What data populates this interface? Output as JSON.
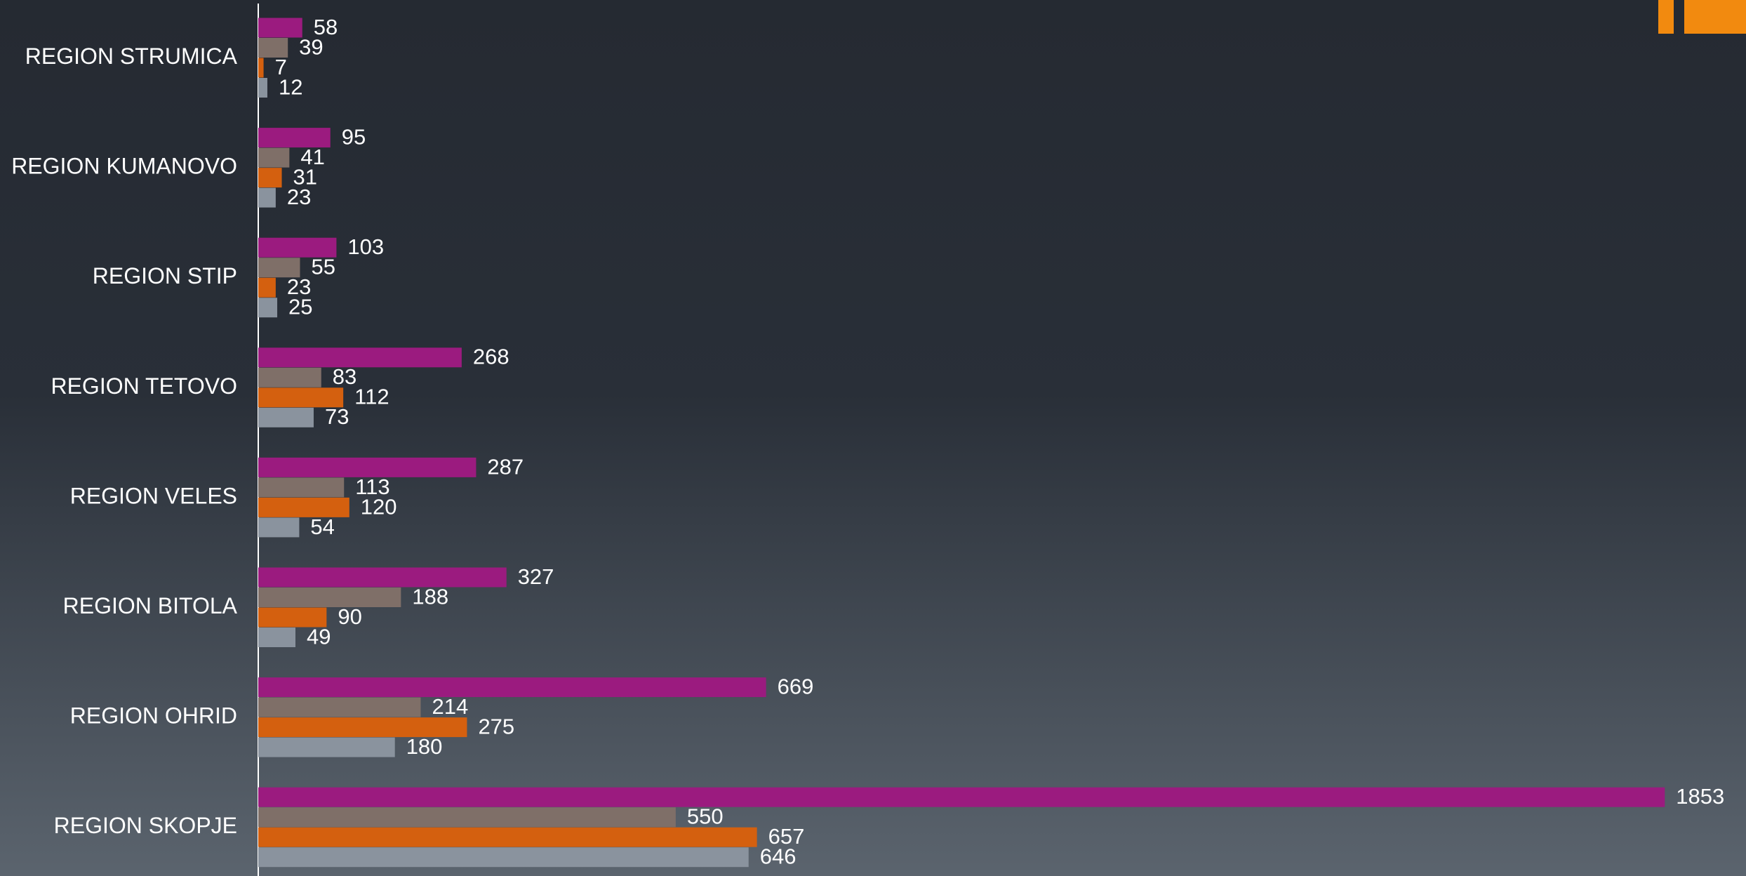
{
  "chart_data": {
    "type": "hbar",
    "categories": [
      "REGION STRUMICA",
      "REGION KUMANOVO",
      "REGION STIP",
      "REGION TETOVO",
      "REGION VELES",
      "REGION BITOLA",
      "REGION OHRID",
      "REGION SKOPJE"
    ],
    "series": [
      {
        "color": "#9b1b7f",
        "values": [
          58,
          95,
          103,
          268,
          287,
          327,
          669,
          1853
        ]
      },
      {
        "color": "#7f6f68",
        "values": [
          39,
          41,
          55,
          83,
          113,
          188,
          214,
          550
        ]
      },
      {
        "color": "#d4600f",
        "values": [
          7,
          31,
          23,
          112,
          120,
          90,
          275,
          657
        ]
      },
      {
        "color": "#8a939e",
        "values": [
          12,
          23,
          25,
          73,
          54,
          49,
          180,
          646
        ]
      }
    ],
    "xlim": [
      0,
      1960
    ]
  }
}
